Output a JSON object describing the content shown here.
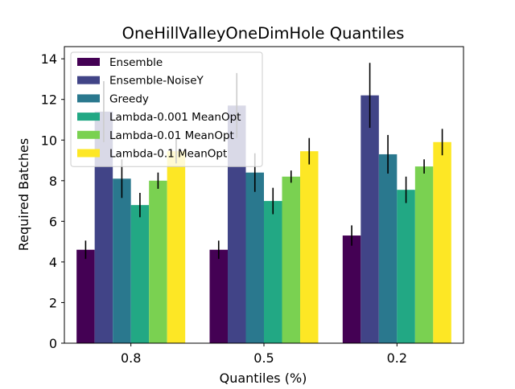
{
  "chart_data": {
    "type": "bar",
    "title": "OneHillValleyOneDimHole Quantiles",
    "xlabel": "Quantiles (%)",
    "ylabel": "Required Batches",
    "categories": [
      "0.8",
      "0.5",
      "0.2"
    ],
    "ylim": [
      0,
      14.6
    ],
    "yticks": [
      "0",
      "2",
      "4",
      "6",
      "8",
      "10",
      "12",
      "14"
    ],
    "grid": false,
    "legend_position": "top-left",
    "series": [
      {
        "name": "Ensemble",
        "color": "#440154",
        "values": [
          4.6,
          4.6,
          5.3
        ],
        "errors": [
          0.45,
          0.45,
          0.5
        ]
      },
      {
        "name": "Ensemble-NoiseY",
        "color": "#414487",
        "values": [
          11.4,
          11.7,
          12.2
        ],
        "errors": [
          1.5,
          1.6,
          1.6
        ]
      },
      {
        "name": "Greedy",
        "color": "#2a788e",
        "values": [
          8.1,
          8.4,
          9.3
        ],
        "errors": [
          0.95,
          0.95,
          0.95
        ]
      },
      {
        "name": "Lambda-0.001 MeanOpt",
        "color": "#22a884",
        "values": [
          6.8,
          7.0,
          7.55
        ],
        "errors": [
          0.6,
          0.65,
          0.65
        ]
      },
      {
        "name": "Lambda-0.01 MeanOpt",
        "color": "#7ad151",
        "values": [
          8.0,
          8.2,
          8.7
        ],
        "errors": [
          0.4,
          0.3,
          0.35
        ]
      },
      {
        "name": "Lambda-0.1 MeanOpt",
        "color": "#fde725",
        "values": [
          9.45,
          9.45,
          9.9
        ],
        "errors": [
          0.6,
          0.65,
          0.65
        ]
      }
    ]
  }
}
